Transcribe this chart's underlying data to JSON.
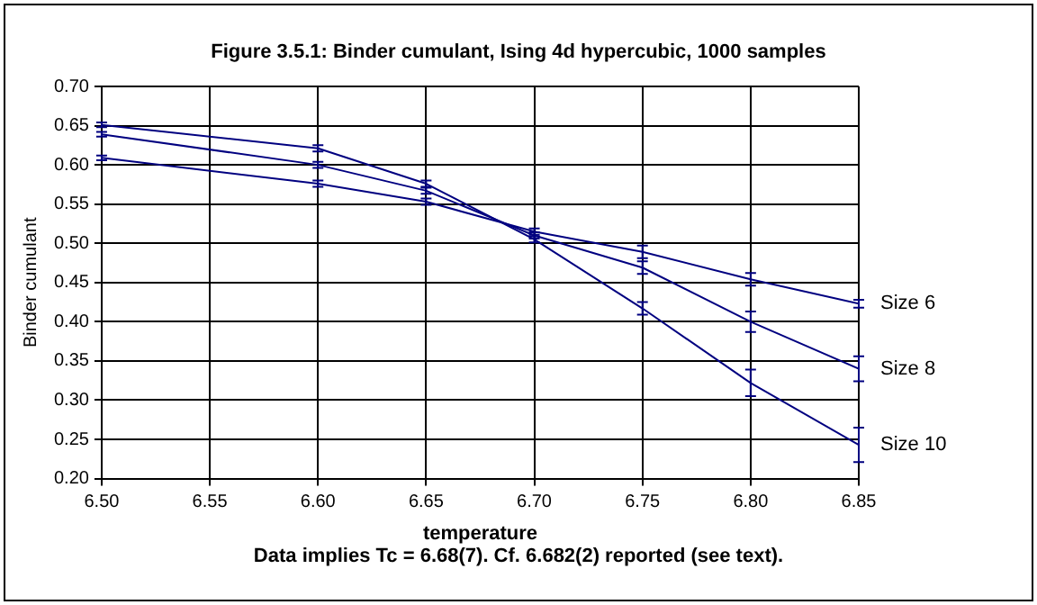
{
  "chart_data": {
    "type": "line",
    "title": "Figure 3.5.1:  Binder cumulant, Ising 4d hypercubic, 1000 samples",
    "xlabel": "temperature",
    "ylabel": "Binder cumulant",
    "annotations": [
      "Data implies Tc = 6.68(7).  Cf. 6.682(2) reported (see text)."
    ],
    "x": [
      6.5,
      6.6,
      6.65,
      6.7,
      6.75,
      6.8,
      6.85
    ],
    "series": [
      {
        "name": "Size 6",
        "color": "#000080",
        "values": [
          0.609,
          0.576,
          0.553,
          0.515,
          0.489,
          0.454,
          0.423
        ],
        "errors": [
          0.003,
          0.004,
          0.004,
          0.004,
          0.008,
          0.008,
          0.005
        ]
      },
      {
        "name": "Size 8",
        "color": "#000080",
        "values": [
          0.639,
          0.6,
          0.567,
          0.51,
          0.469,
          0.4,
          0.34
        ],
        "errors": [
          0.003,
          0.004,
          0.004,
          0.004,
          0.008,
          0.013,
          0.016
        ]
      },
      {
        "name": "Size 10",
        "color": "#000080",
        "values": [
          0.651,
          0.621,
          0.576,
          0.505,
          0.417,
          0.322,
          0.243
        ],
        "errors": [
          0.003,
          0.004,
          0.004,
          0.004,
          0.008,
          0.017,
          0.022
        ]
      }
    ],
    "xlim": [
      6.5,
      6.85
    ],
    "xticks": [
      {
        "value": 6.5,
        "label": "6.50"
      },
      {
        "value": 6.55,
        "label": "6.55"
      },
      {
        "value": 6.6,
        "label": "6.60"
      },
      {
        "value": 6.65,
        "label": "6.65"
      },
      {
        "value": 6.7,
        "label": "6.70"
      },
      {
        "value": 6.75,
        "label": "6.75"
      },
      {
        "value": 6.8,
        "label": "6.80"
      },
      {
        "value": 6.85,
        "label": "6.85"
      }
    ],
    "ylim": [
      0.2,
      0.7
    ],
    "yticks": [
      {
        "value": 0.2,
        "label": "0.20"
      },
      {
        "value": 0.25,
        "label": "0.25"
      },
      {
        "value": 0.3,
        "label": "0.30"
      },
      {
        "value": 0.35,
        "label": "0.35"
      },
      {
        "value": 0.4,
        "label": "0.40"
      },
      {
        "value": 0.45,
        "label": "0.45"
      },
      {
        "value": 0.5,
        "label": "0.50"
      },
      {
        "value": 0.55,
        "label": "0.55"
      },
      {
        "value": 0.6,
        "label": "0.60"
      },
      {
        "value": 0.65,
        "label": "0.65"
      },
      {
        "value": 0.7,
        "label": "0.70"
      }
    ],
    "grid": true,
    "legend": false,
    "marker": "none",
    "line_style": "solid"
  }
}
